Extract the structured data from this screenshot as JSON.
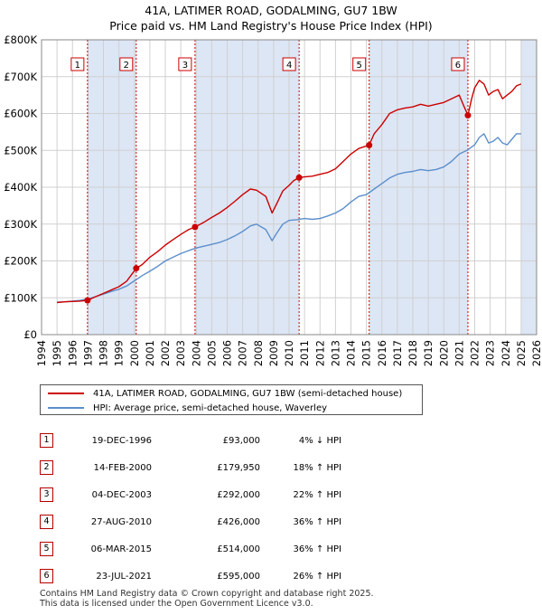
{
  "title": {
    "line1": "41A, LATIMER ROAD, GODALMING, GU7 1BW",
    "line2": "Price paid vs. HM Land Registry's House Price Index (HPI)"
  },
  "legend": {
    "property_label": "41A, LATIMER ROAD, GODALMING, GU7 1BW (semi-detached house)",
    "hpi_label": "HPI: Average price, semi-detached house, Waverley"
  },
  "sales": [
    {
      "num": "1",
      "date": "19-DEC-1996",
      "price": "£93,000",
      "hpi": "4% ↓ HPI"
    },
    {
      "num": "2",
      "date": "14-FEB-2000",
      "price": "£179,950",
      "hpi": "18% ↑ HPI"
    },
    {
      "num": "3",
      "date": "04-DEC-2003",
      "price": "£292,000",
      "hpi": "22% ↑ HPI"
    },
    {
      "num": "4",
      "date": "27-AUG-2010",
      "price": "£426,000",
      "hpi": "36% ↑ HPI"
    },
    {
      "num": "5",
      "date": "06-MAR-2015",
      "price": "£514,000",
      "hpi": "36% ↑ HPI"
    },
    {
      "num": "6",
      "date": "23-JUL-2021",
      "price": "£595,000",
      "hpi": "26% ↑ HPI"
    }
  ],
  "footer": {
    "line1": "Contains HM Land Registry data © Crown copyright and database right 2025.",
    "line2": "This data is licensed under the Open Government Licence v3.0."
  },
  "chart_data": {
    "type": "line",
    "title": "Price paid vs. HM Land Registry's House Price Index (HPI)",
    "xlabel": "",
    "ylabel": "",
    "xlim": [
      1994,
      2026
    ],
    "ylim": [
      0,
      800000
    ],
    "x_ticks": [
      1994,
      1995,
      1996,
      1997,
      1998,
      1999,
      2000,
      2001,
      2002,
      2003,
      2004,
      2005,
      2006,
      2007,
      2008,
      2009,
      2010,
      2011,
      2012,
      2013,
      2014,
      2015,
      2016,
      2017,
      2018,
      2019,
      2020,
      2021,
      2022,
      2023,
      2024,
      2025,
      2026
    ],
    "y_ticks": [
      0,
      100000,
      200000,
      300000,
      400000,
      500000,
      600000,
      700000,
      800000
    ],
    "y_tick_labels": [
      "£0",
      "£100K",
      "£200K",
      "£300K",
      "£400K",
      "£500K",
      "£600K",
      "£700K",
      "£800K"
    ],
    "grid": true,
    "colors": {
      "property": "#cc0000",
      "hpi": "#5b8fcc",
      "shade": "#dde6f5",
      "vline": "#cc0000"
    },
    "series": [
      {
        "name": "41A, LATIMER ROAD, GODALMING, GU7 1BW (semi-detached house)",
        "x": [
          1995.0,
          1995.5,
          1996.0,
          1996.5,
          1996.97,
          1997.5,
          1998.0,
          1998.5,
          1999.0,
          1999.5,
          2000.12,
          2000.5,
          2001.0,
          2001.5,
          2002.0,
          2002.5,
          2003.0,
          2003.5,
          2003.92,
          2004.5,
          2005.0,
          2005.5,
          2006.0,
          2006.5,
          2007.0,
          2007.5,
          2007.9,
          2008.5,
          2008.9,
          2009.2,
          2009.6,
          2010.0,
          2010.3,
          2010.65,
          2011.0,
          2011.5,
          2012.0,
          2012.5,
          2013.0,
          2013.5,
          2014.0,
          2014.5,
          2015.0,
          2015.18,
          2015.5,
          2016.0,
          2016.5,
          2017.0,
          2017.5,
          2018.0,
          2018.5,
          2019.0,
          2019.5,
          2020.0,
          2020.5,
          2021.0,
          2021.3,
          2021.56,
          2021.8,
          2022.0,
          2022.3,
          2022.6,
          2022.9,
          2023.2,
          2023.5,
          2023.8,
          2024.1,
          2024.4,
          2024.7,
          2025.0
        ],
        "values": [
          87000,
          89000,
          90000,
          91000,
          93000,
          103000,
          112000,
          121000,
          130000,
          145000,
          179950,
          190000,
          210000,
          225000,
          243000,
          258000,
          272000,
          285000,
          292000,
          305000,
          318000,
          330000,
          345000,
          362000,
          380000,
          395000,
          392000,
          375000,
          330000,
          355000,
          390000,
          405000,
          418000,
          426000,
          428000,
          430000,
          435000,
          440000,
          450000,
          470000,
          490000,
          505000,
          512000,
          514000,
          545000,
          570000,
          600000,
          610000,
          615000,
          618000,
          625000,
          620000,
          625000,
          630000,
          640000,
          650000,
          620000,
          595000,
          640000,
          670000,
          690000,
          680000,
          650000,
          660000,
          665000,
          640000,
          650000,
          660000,
          675000,
          680000
        ]
      },
      {
        "name": "HPI: Average price, semi-detached house, Waverley",
        "x": [
          1995.0,
          1995.5,
          1996.0,
          1996.5,
          1997.0,
          1997.5,
          1998.0,
          1998.5,
          1999.0,
          1999.5,
          2000.0,
          2000.5,
          2001.0,
          2001.5,
          2002.0,
          2002.5,
          2003.0,
          2003.5,
          2004.0,
          2004.5,
          2005.0,
          2005.5,
          2006.0,
          2006.5,
          2007.0,
          2007.5,
          2007.9,
          2008.5,
          2008.9,
          2009.2,
          2009.6,
          2010.0,
          2010.5,
          2011.0,
          2011.5,
          2012.0,
          2012.5,
          2013.0,
          2013.5,
          2014.0,
          2014.5,
          2015.0,
          2015.5,
          2016.0,
          2016.5,
          2017.0,
          2017.5,
          2018.0,
          2018.5,
          2019.0,
          2019.5,
          2020.0,
          2020.5,
          2021.0,
          2021.5,
          2022.0,
          2022.3,
          2022.6,
          2022.9,
          2023.2,
          2023.5,
          2023.8,
          2024.1,
          2024.4,
          2024.7,
          2025.0
        ],
        "values": [
          88000,
          89000,
          91000,
          93000,
          97000,
          103000,
          110000,
          117000,
          123000,
          132000,
          146000,
          160000,
          172000,
          185000,
          200000,
          210000,
          220000,
          228000,
          235000,
          240000,
          245000,
          250000,
          258000,
          268000,
          280000,
          295000,
          300000,
          285000,
          255000,
          275000,
          300000,
          310000,
          312000,
          315000,
          313000,
          315000,
          322000,
          330000,
          342000,
          360000,
          375000,
          380000,
          395000,
          410000,
          425000,
          435000,
          440000,
          443000,
          448000,
          445000,
          448000,
          455000,
          470000,
          490000,
          500000,
          515000,
          535000,
          545000,
          520000,
          525000,
          535000,
          520000,
          515000,
          530000,
          545000,
          545000
        ]
      }
    ],
    "sales_markers": [
      {
        "num": "1",
        "x": 1996.97,
        "value": 93000
      },
      {
        "num": "2",
        "x": 2000.12,
        "value": 179950
      },
      {
        "num": "3",
        "x": 2003.92,
        "value": 292000
      },
      {
        "num": "4",
        "x": 2010.65,
        "value": 426000
      },
      {
        "num": "5",
        "x": 2015.18,
        "value": 514000
      },
      {
        "num": "6",
        "x": 2021.56,
        "value": 595000
      }
    ],
    "shaded_ranges": [
      [
        1996.97,
        2000.12
      ],
      [
        2003.92,
        2010.65
      ],
      [
        2015.18,
        2021.56
      ],
      [
        2025.0,
        2026.0
      ]
    ]
  }
}
